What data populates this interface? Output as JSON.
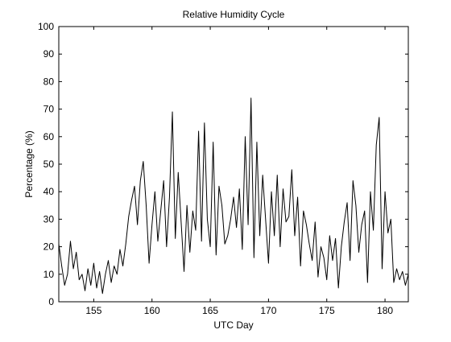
{
  "chart_data": {
    "type": "line",
    "title": "Relative Humidity Cycle",
    "xlabel": "UTC Day",
    "ylabel": "Percentage (%)",
    "xlim": [
      152,
      182
    ],
    "ylim": [
      0,
      100
    ],
    "xticks": [
      155,
      160,
      165,
      170,
      175,
      180
    ],
    "yticks": [
      0,
      10,
      20,
      30,
      40,
      50,
      60,
      70,
      80,
      90,
      100
    ],
    "grid": false,
    "line_color": "#000000",
    "series": [
      {
        "x": [
          152.0,
          152.25,
          152.5,
          152.75,
          153.0,
          153.25,
          153.5,
          153.75,
          154.0,
          154.25,
          154.5,
          154.75,
          155.0,
          155.25,
          155.5,
          155.75,
          156.0,
          156.25,
          156.5,
          156.75,
          157.0,
          157.25,
          157.5,
          157.75,
          158.0,
          158.25,
          158.5,
          158.75,
          159.0,
          159.25,
          159.5,
          159.75,
          160.0,
          160.25,
          160.5,
          160.75,
          161.0,
          161.25,
          161.5,
          161.75,
          162.0,
          162.25,
          162.5,
          162.75,
          163.0,
          163.25,
          163.5,
          163.75,
          164.0,
          164.25,
          164.5,
          164.75,
          165.0,
          165.25,
          165.5,
          165.75,
          166.0,
          166.25,
          166.5,
          166.75,
          167.0,
          167.25,
          167.5,
          167.75,
          168.0,
          168.25,
          168.5,
          168.75,
          169.0,
          169.25,
          169.5,
          169.75,
          170.0,
          170.25,
          170.5,
          170.75,
          171.0,
          171.25,
          171.5,
          171.75,
          172.0,
          172.25,
          172.5,
          172.75,
          173.0,
          173.25,
          173.5,
          173.75,
          174.0,
          174.25,
          174.5,
          174.75,
          175.0,
          175.25,
          175.5,
          175.75,
          176.0,
          176.25,
          176.5,
          176.75,
          177.0,
          177.25,
          177.5,
          177.75,
          178.0,
          178.25,
          178.5,
          178.75,
          179.0,
          179.25,
          179.5,
          179.75,
          180.0,
          180.25,
          180.5,
          180.75,
          181.0,
          181.25,
          181.5,
          181.75,
          182.0
        ],
        "values": [
          21,
          13,
          6,
          10,
          22,
          12,
          18,
          8,
          10,
          4,
          12,
          6,
          14,
          5,
          11,
          3,
          10,
          15,
          7,
          13,
          10,
          19,
          13,
          21,
          31,
          37,
          42,
          28,
          44,
          51,
          35,
          14,
          28,
          40,
          22,
          33,
          44,
          20,
          38,
          69,
          23,
          47,
          29,
          11,
          35,
          18,
          33,
          26,
          62,
          22,
          65,
          30,
          20,
          58,
          17,
          42,
          35,
          21,
          24,
          30,
          38,
          27,
          41,
          19,
          60,
          28,
          74,
          16,
          58,
          24,
          46,
          30,
          14,
          40,
          24,
          46,
          20,
          41,
          29,
          31,
          48,
          24,
          38,
          13,
          33,
          28,
          21,
          15,
          29,
          9,
          20,
          16,
          8,
          24,
          15,
          23,
          5,
          20,
          29,
          36,
          15,
          44,
          35,
          18,
          28,
          33,
          7,
          40,
          26,
          57,
          67,
          12,
          40,
          25,
          30,
          7,
          12,
          8,
          11,
          6,
          10
        ]
      }
    ]
  }
}
